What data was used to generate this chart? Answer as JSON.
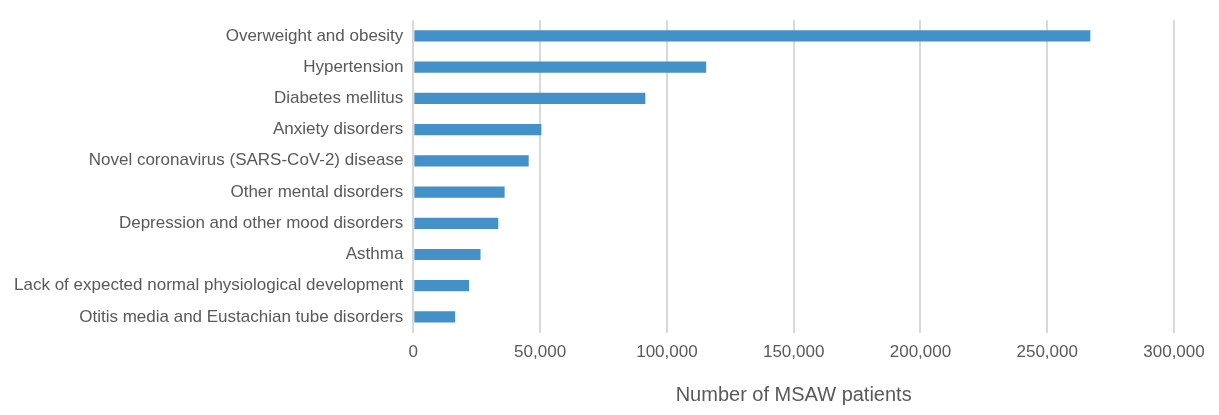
{
  "chart_data": {
    "type": "bar",
    "orientation": "horizontal",
    "xlabel": "Number of MSAW patients",
    "categories": [
      "Overweight and obesity",
      "Hypertension",
      "Diabetes mellitus",
      "Anxiety disorders",
      "Novel coronavirus (SARS-CoV-2) disease",
      "Other mental disorders",
      "Depression and other mood disorders",
      "Asthma",
      "Lack of expected normal physiological development",
      "Otitis media and Eustachian tube disorders"
    ],
    "values": [
      267000,
      115500,
      91500,
      50500,
      45500,
      36000,
      33500,
      26500,
      22000,
      16500
    ],
    "color": "#4391c8",
    "xlim": [
      0,
      300000
    ],
    "xticks": [
      {
        "value": 0,
        "label": "0"
      },
      {
        "value": 50000,
        "label": "50,000"
      },
      {
        "value": 100000,
        "label": "100,000"
      },
      {
        "value": 150000,
        "label": "150,000"
      },
      {
        "value": 200000,
        "label": "200,000"
      },
      {
        "value": 250000,
        "label": "250,000"
      },
      {
        "value": 300000,
        "label": "300,000"
      }
    ],
    "grid": "x",
    "legend": false
  }
}
